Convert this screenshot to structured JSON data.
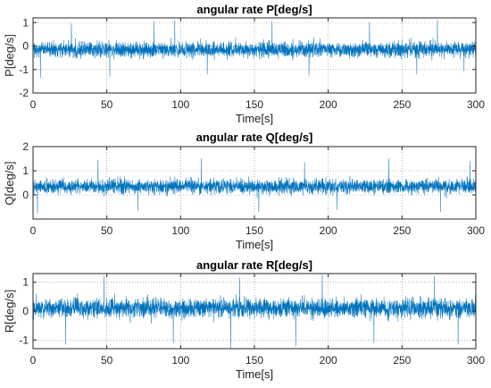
{
  "chart_data": [
    {
      "type": "line",
      "title": "angular rate P[deg/s]",
      "xlabel": "Time[s]",
      "ylabel": "P[deg/s]",
      "xlim": [
        0,
        300
      ],
      "ylim": [
        -2,
        1.2
      ],
      "xticks": [
        "0",
        "50",
        "100",
        "150",
        "200",
        "250",
        "300"
      ],
      "yticks": [
        "-2",
        "-1",
        "0",
        "1"
      ],
      "grid": true,
      "series": [
        {
          "color": "#0072BD",
          "signal": {
            "samples": 3000,
            "mean": -0.15,
            "sigma": 0.32,
            "min": -1.25,
            "max": 1.1
          },
          "spikes": [
            [
              5,
              -1.35
            ],
            [
              26,
              0.95
            ],
            [
              52,
              -1.3
            ],
            [
              82,
              1.05
            ],
            [
              96,
              1.1
            ],
            [
              118,
              -1.2
            ],
            [
              162,
              1.05
            ],
            [
              187,
              -1.25
            ],
            [
              228,
              1.0
            ],
            [
              260,
              -1.2
            ],
            [
              274,
              1.1
            ],
            [
              292,
              -1.05
            ]
          ]
        }
      ]
    },
    {
      "type": "line",
      "title": "angular rate Q[deg/s]",
      "xlabel": "Time[s]",
      "ylabel": "Q[deg/s]",
      "xlim": [
        0,
        300
      ],
      "ylim": [
        -1,
        2
      ],
      "xticks": [
        "0",
        "50",
        "100",
        "150",
        "200",
        "250",
        "300"
      ],
      "yticks": [
        "0",
        "1",
        "2"
      ],
      "grid": true,
      "series": [
        {
          "color": "#0072BD",
          "signal": {
            "samples": 3000,
            "mean": 0.35,
            "sigma": 0.3,
            "min": -0.6,
            "max": 1.5
          },
          "spikes": [
            [
              3,
              -0.75
            ],
            [
              44,
              1.45
            ],
            [
              71,
              -0.65
            ],
            [
              114,
              1.5
            ],
            [
              153,
              -0.7
            ],
            [
              184,
              1.35
            ],
            [
              206,
              -0.6
            ],
            [
              241,
              1.5
            ],
            [
              276,
              -0.7
            ],
            [
              296,
              1.4
            ]
          ]
        }
      ]
    },
    {
      "type": "line",
      "title": "angular rate R[deg/s]",
      "xlabel": "Time[s]",
      "ylabel": "R[deg/s]",
      "xlim": [
        0,
        300
      ],
      "ylim": [
        -1.3,
        1.3
      ],
      "xticks": [
        "0",
        "50",
        "100",
        "150",
        "200",
        "250",
        "300"
      ],
      "yticks": [
        "-1",
        "0",
        "1"
      ],
      "grid": true,
      "series": [
        {
          "color": "#0072BD",
          "signal": {
            "samples": 3000,
            "mean": 0.1,
            "sigma": 0.33,
            "min": -1.2,
            "max": 1.2
          },
          "spikes": [
            [
              22,
              -1.15
            ],
            [
              48,
              1.2
            ],
            [
              95,
              -1.1
            ],
            [
              134,
              -1.3
            ],
            [
              140,
              1.15
            ],
            [
              178,
              -1.2
            ],
            [
              196,
              1.25
            ],
            [
              231,
              -1.1
            ],
            [
              272,
              1.2
            ],
            [
              288,
              -1.15
            ]
          ]
        }
      ]
    }
  ]
}
